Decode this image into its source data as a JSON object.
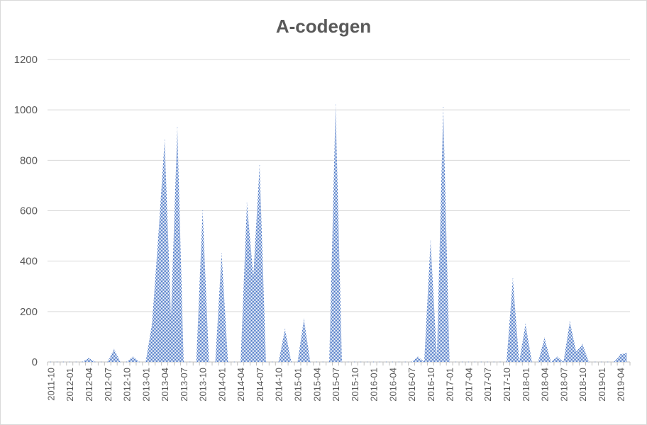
{
  "chart_data": {
    "type": "area",
    "title": "A-codegen",
    "xlabel": "",
    "ylabel": "",
    "ylim": [
      0,
      1200
    ],
    "yticks": [
      0,
      200,
      400,
      600,
      800,
      1000,
      1200
    ],
    "grid": true,
    "legend": "none",
    "series_color": "#4472c4",
    "x_tick_labels": [
      "2011-10",
      "2012-01",
      "2012-04",
      "2012-07",
      "2012-10",
      "2013-01",
      "2013-04",
      "2013-07",
      "2013-10",
      "2014-01",
      "2014-04",
      "2014-07",
      "2014-10",
      "2015-01",
      "2015-04",
      "2015-07",
      "2015-10",
      "2016-01",
      "2016-04",
      "2016-07",
      "2016-10",
      "2017-01",
      "2017-04",
      "2017-07",
      "2017-10",
      "2018-01",
      "2018-04",
      "2018-07",
      "2018-10",
      "2019-01",
      "2019-04"
    ],
    "x": [
      "2011-10",
      "2011-11",
      "2011-12",
      "2012-01",
      "2012-02",
      "2012-03",
      "2012-04",
      "2012-05",
      "2012-06",
      "2012-07",
      "2012-08",
      "2012-09",
      "2012-10",
      "2012-11",
      "2012-12",
      "2013-01",
      "2013-02",
      "2013-03",
      "2013-04",
      "2013-05",
      "2013-06",
      "2013-07",
      "2013-08",
      "2013-09",
      "2013-10",
      "2013-11",
      "2013-12",
      "2014-01",
      "2014-02",
      "2014-03",
      "2014-04",
      "2014-05",
      "2014-06",
      "2014-07",
      "2014-08",
      "2014-09",
      "2014-10",
      "2014-11",
      "2014-12",
      "2015-01",
      "2015-02",
      "2015-03",
      "2015-04",
      "2015-05",
      "2015-06",
      "2015-07",
      "2015-08",
      "2015-09",
      "2015-10",
      "2015-11",
      "2015-12",
      "2016-01",
      "2016-02",
      "2016-03",
      "2016-04",
      "2016-05",
      "2016-06",
      "2016-07",
      "2016-08",
      "2016-09",
      "2016-10",
      "2016-11",
      "2016-12",
      "2017-01",
      "2017-02",
      "2017-03",
      "2017-04",
      "2017-05",
      "2017-06",
      "2017-07",
      "2017-08",
      "2017-09",
      "2017-10",
      "2017-11",
      "2017-12",
      "2018-01",
      "2018-02",
      "2018-03",
      "2018-04",
      "2018-05",
      "2018-06",
      "2018-07",
      "2018-08",
      "2018-09",
      "2018-10",
      "2018-11",
      "2018-12",
      "2019-01",
      "2019-02",
      "2019-03",
      "2019-04",
      "2019-05"
    ],
    "values": [
      0,
      0,
      0,
      0,
      0,
      0,
      15,
      0,
      0,
      0,
      50,
      0,
      0,
      20,
      0,
      0,
      150,
      500,
      880,
      180,
      930,
      0,
      0,
      0,
      600,
      0,
      0,
      430,
      0,
      0,
      0,
      630,
      340,
      780,
      0,
      0,
      0,
      130,
      0,
      0,
      170,
      0,
      0,
      0,
      0,
      1020,
      0,
      0,
      0,
      0,
      0,
      0,
      0,
      0,
      0,
      0,
      0,
      0,
      20,
      0,
      480,
      20,
      1010,
      0,
      0,
      0,
      0,
      0,
      0,
      0,
      0,
      0,
      0,
      330,
      0,
      150,
      0,
      0,
      95,
      0,
      20,
      0,
      160,
      40,
      70,
      0,
      0,
      0,
      0,
      0,
      30,
      35
    ]
  }
}
